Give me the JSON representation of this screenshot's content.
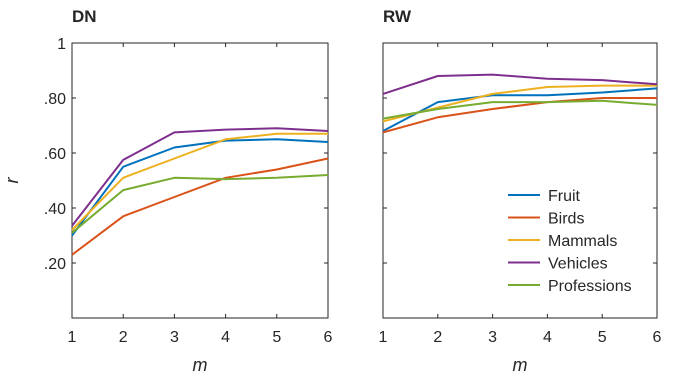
{
  "chart_data": [
    {
      "type": "line",
      "title": "DN",
      "xlabel": "m",
      "ylabel": "r",
      "x": [
        1,
        2,
        3,
        4,
        5,
        6
      ],
      "xlim": [
        1,
        6
      ],
      "ylim": [
        0,
        1
      ],
      "yticks": [
        0.2,
        0.4,
        0.6,
        0.8,
        1.0
      ],
      "ytick_labels": [
        ".20",
        ".40",
        ".60",
        ".80",
        "1"
      ],
      "grid": false,
      "series": [
        {
          "name": "Fruit",
          "color": "#0072BD",
          "values": [
            0.3,
            0.55,
            0.62,
            0.645,
            0.65,
            0.64
          ]
        },
        {
          "name": "Birds",
          "color": "#D95319",
          "values": [
            0.23,
            0.37,
            0.44,
            0.51,
            0.54,
            0.58
          ]
        },
        {
          "name": "Mammals",
          "color": "#EDB120",
          "values": [
            0.32,
            0.51,
            0.58,
            0.65,
            0.67,
            0.67
          ]
        },
        {
          "name": "Vehicles",
          "color": "#7E2F8E",
          "values": [
            0.335,
            0.575,
            0.675,
            0.685,
            0.69,
            0.68
          ]
        },
        {
          "name": "Professions",
          "color": "#77AC30",
          "values": [
            0.31,
            0.465,
            0.51,
            0.505,
            0.51,
            0.52
          ]
        }
      ]
    },
    {
      "type": "line",
      "title": "RW",
      "xlabel": "m",
      "ylabel": "",
      "x": [
        1,
        2,
        3,
        4,
        5,
        6
      ],
      "xlim": [
        1,
        6
      ],
      "ylim": [
        0,
        1
      ],
      "yticks": [
        0.2,
        0.4,
        0.6,
        0.8,
        1.0
      ],
      "ytick_labels": [],
      "grid": false,
      "legend": "bottom-right",
      "series": [
        {
          "name": "Fruit",
          "color": "#0072BD",
          "values": [
            0.68,
            0.785,
            0.81,
            0.81,
            0.82,
            0.835
          ]
        },
        {
          "name": "Birds",
          "color": "#D95319",
          "values": [
            0.675,
            0.73,
            0.76,
            0.785,
            0.8,
            0.8
          ]
        },
        {
          "name": "Mammals",
          "color": "#EDB120",
          "values": [
            0.715,
            0.765,
            0.815,
            0.84,
            0.845,
            0.845
          ]
        },
        {
          "name": "Vehicles",
          "color": "#7E2F8E",
          "values": [
            0.815,
            0.88,
            0.885,
            0.87,
            0.865,
            0.85
          ]
        },
        {
          "name": "Professions",
          "color": "#77AC30",
          "values": [
            0.725,
            0.76,
            0.785,
            0.785,
            0.79,
            0.775
          ]
        }
      ]
    }
  ]
}
